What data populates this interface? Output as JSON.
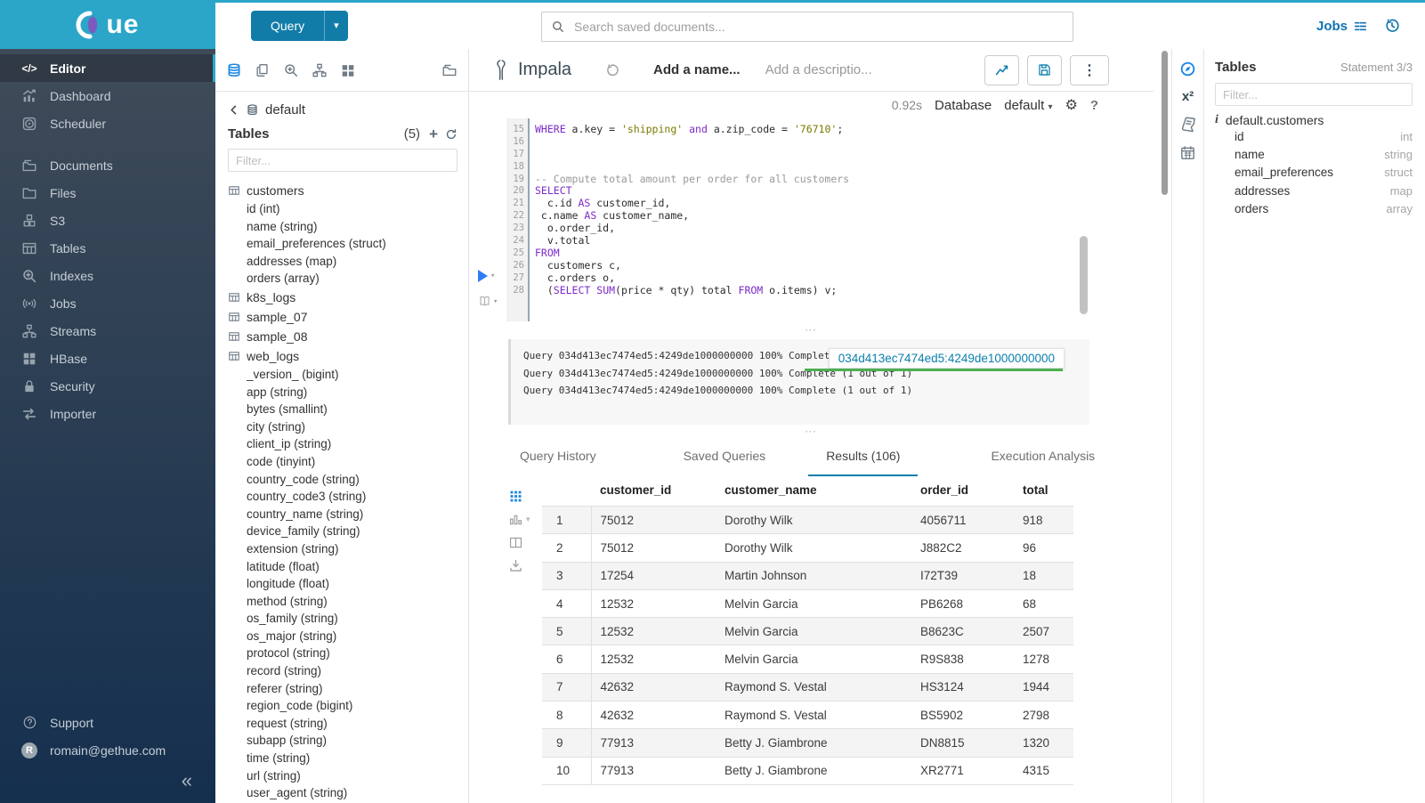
{
  "icons": {
    "kebab": "⋮",
    "plus": "+",
    "collapse": "«",
    "caret_down": "▾",
    "gear": "⚙",
    "question": "?",
    "info": "i",
    "superscript_x2": "x²",
    "ellipsis_handle": "⋯",
    "logo_text": "ue"
  },
  "topbar": {
    "query_button": "Query",
    "search_placeholder": "Search saved documents...",
    "jobs_label": "Jobs"
  },
  "sidebar": {
    "items": [
      {
        "label": "Editor",
        "icon": "editor",
        "active": true
      },
      {
        "label": "Dashboard",
        "icon": "dashboard"
      },
      {
        "label": "Scheduler",
        "icon": "scheduler"
      },
      {
        "label": "Documents",
        "icon": "documents",
        "gap_before": true
      },
      {
        "label": "Files",
        "icon": "files"
      },
      {
        "label": "S3",
        "icon": "s3"
      },
      {
        "label": "Tables",
        "icon": "tables"
      },
      {
        "label": "Indexes",
        "icon": "indexes"
      },
      {
        "label": "Jobs",
        "icon": "jobs"
      },
      {
        "label": "Streams",
        "icon": "streams"
      },
      {
        "label": "HBase",
        "icon": "hbase"
      },
      {
        "label": "Security",
        "icon": "security"
      },
      {
        "label": "Importer",
        "icon": "importer"
      }
    ],
    "support_label": "Support",
    "user_email": "romain@gethue.com"
  },
  "assist": {
    "database": "default",
    "tables_header": "Tables",
    "table_count": "(5)",
    "filter_placeholder": "Filter...",
    "tree": [
      {
        "name": "customers",
        "columns": [
          "id (int)",
          "name (string)",
          "email_preferences (struct)",
          "addresses (map)",
          "orders (array)"
        ]
      },
      {
        "name": "k8s_logs",
        "columns": []
      },
      {
        "name": "sample_07",
        "columns": []
      },
      {
        "name": "sample_08",
        "columns": []
      },
      {
        "name": "web_logs",
        "columns": [
          "_version_ (bigint)",
          "app (string)",
          "bytes (smallint)",
          "city (string)",
          "client_ip (string)",
          "code (tinyint)",
          "country_code (string)",
          "country_code3 (string)",
          "country_name (string)",
          "device_family (string)",
          "extension (string)",
          "latitude (float)",
          "longitude (float)",
          "method (string)",
          "os_family (string)",
          "os_major (string)",
          "protocol (string)",
          "record (string)",
          "referer (string)",
          "region_code (bigint)",
          "request (string)",
          "subapp (string)",
          "time (string)",
          "url (string)",
          "user_agent (string)"
        ]
      }
    ]
  },
  "editor": {
    "engine": "Impala",
    "name_placeholder": "Add a name...",
    "description_placeholder": "Add a descriptio...",
    "execution_time": "0.92s",
    "database_label": "Database",
    "database_value": "default",
    "code_lines": [
      {
        "n": 15,
        "tokens": [
          [
            "kw",
            "WHERE"
          ],
          [
            "pl",
            " a.key = "
          ],
          [
            "str",
            "'shipping'"
          ],
          [
            "pl",
            " "
          ],
          [
            "kw",
            "and"
          ],
          [
            "pl",
            " a.zip_code = "
          ],
          [
            "str",
            "'76710'"
          ],
          [
            "pl",
            ";"
          ]
        ]
      },
      {
        "n": 16,
        "tokens": []
      },
      {
        "n": 17,
        "tokens": []
      },
      {
        "n": 18,
        "tokens": []
      },
      {
        "n": 19,
        "tokens": [
          [
            "com",
            "-- Compute total amount per order for all customers"
          ]
        ]
      },
      {
        "n": 20,
        "tokens": [
          [
            "kw",
            "SELECT"
          ]
        ]
      },
      {
        "n": 21,
        "tokens": [
          [
            "pl",
            "  c.id "
          ],
          [
            "kw",
            "AS"
          ],
          [
            "pl",
            " customer_id,"
          ]
        ]
      },
      {
        "n": 22,
        "tokens": [
          [
            "pl",
            " c.name "
          ],
          [
            "kw",
            "AS"
          ],
          [
            "pl",
            " customer_name,"
          ]
        ]
      },
      {
        "n": 23,
        "tokens": [
          [
            "pl",
            "  o.order_id,"
          ]
        ]
      },
      {
        "n": 24,
        "tokens": [
          [
            "pl",
            "  v.total"
          ]
        ]
      },
      {
        "n": 25,
        "tokens": [
          [
            "kw",
            "FROM"
          ]
        ]
      },
      {
        "n": 26,
        "tokens": [
          [
            "pl",
            "  customers c,"
          ]
        ]
      },
      {
        "n": 27,
        "tokens": [
          [
            "pl",
            "  c.orders o,"
          ]
        ]
      },
      {
        "n": 28,
        "tokens": [
          [
            "pl",
            "  ("
          ],
          [
            "kw",
            "SELECT"
          ],
          [
            "pl",
            " "
          ],
          [
            "kw",
            "SUM"
          ],
          [
            "pl",
            "(price * qty) total "
          ],
          [
            "kw",
            "FROM"
          ],
          [
            "pl",
            " o.items) v;"
          ]
        ]
      }
    ],
    "log_lines": [
      "Query 034d413ec7474ed5:4249de1000000000 100% Complete (1 out of 1)",
      "Query 034d413ec7474ed5:4249de1000000000 100% Complete (1 out of 1)",
      "Query 034d413ec7474ed5:4249de1000000000 100% Complete (1 out of 1)"
    ],
    "query_id_tooltip": "034d413ec7474ed5:4249de1000000000"
  },
  "result_tabs": {
    "tabs": [
      {
        "label": "Query History"
      },
      {
        "label": "Saved Queries"
      },
      {
        "label": "Results (106)",
        "active": true
      },
      {
        "label": "Execution Analysis"
      }
    ]
  },
  "results": {
    "columns": [
      "customer_id",
      "customer_name",
      "order_id",
      "total"
    ],
    "rows": [
      [
        "1",
        "75012",
        "Dorothy Wilk",
        "4056711",
        "918"
      ],
      [
        "2",
        "75012",
        "Dorothy Wilk",
        "J882C2",
        "96"
      ],
      [
        "3",
        "17254",
        "Martin Johnson",
        "I72T39",
        "18"
      ],
      [
        "4",
        "12532",
        "Melvin Garcia",
        "PB6268",
        "68"
      ],
      [
        "5",
        "12532",
        "Melvin Garcia",
        "B8623C",
        "2507"
      ],
      [
        "6",
        "12532",
        "Melvin Garcia",
        "R9S838",
        "1278"
      ],
      [
        "7",
        "42632",
        "Raymond S. Vestal",
        "HS3124",
        "1944"
      ],
      [
        "8",
        "42632",
        "Raymond S. Vestal",
        "BS5902",
        "2798"
      ],
      [
        "9",
        "77913",
        "Betty J. Giambrone",
        "DN8815",
        "1320"
      ],
      [
        "10",
        "77913",
        "Betty J. Giambrone",
        "XR2771",
        "4315"
      ]
    ]
  },
  "right_panel": {
    "title": "Tables",
    "statement_counter": "Statement 3/3",
    "filter_placeholder": "Filter...",
    "table_name": "default.customers",
    "columns": [
      {
        "name": "id",
        "type": "int"
      },
      {
        "name": "name",
        "type": "string"
      },
      {
        "name": "email_preferences",
        "type": "struct"
      },
      {
        "name": "addresses",
        "type": "map"
      },
      {
        "name": "orders",
        "type": "array"
      }
    ]
  },
  "colors": {
    "brand_cyan": "#2BA6C9",
    "accent_blue": "#0B7FAD",
    "bright_blue": "#1E88E5",
    "keyword_purple": "#7D2BC9",
    "string_olive": "#7A7A00",
    "success_green": "#4CAF50"
  }
}
